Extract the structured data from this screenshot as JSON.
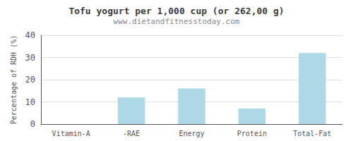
{
  "chart_data": {
    "type": "bar",
    "title": "Tofu yogurt per 1,000 cup (or 262,00 g)",
    "subtitle": "www.dietandfitnesstoday.com",
    "categories": [
      "Vitamin-A",
      "-RAE",
      "Energy",
      "Protein",
      "Total-Fat"
    ],
    "values": [
      0,
      12,
      16,
      7,
      32
    ],
    "color": "#add8e6",
    "ylabel": "Percentage of RDH (%)",
    "ylim": [
      0,
      40
    ],
    "yticks": [
      0,
      10,
      20,
      30,
      40
    ],
    "grid": true
  }
}
